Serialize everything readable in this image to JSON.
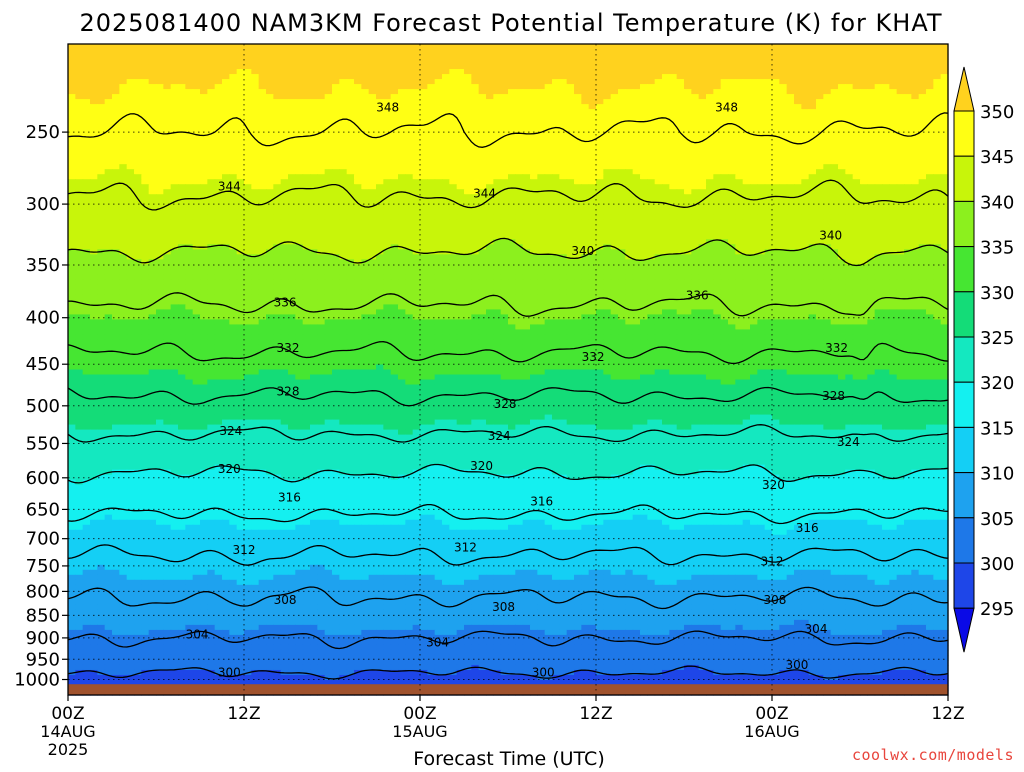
{
  "chart_data": {
    "type": "contour",
    "title": "2025081400 NAM3KM Forecast Potential Temperature (K) for KHAT",
    "xlabel": "Forecast Time (UTC)",
    "ylabel": "",
    "y_scale": "log",
    "y_inverted": true,
    "ylim_hpa": [
      1040,
      200
    ],
    "y_ticks": [
      250,
      300,
      350,
      400,
      450,
      500,
      550,
      600,
      650,
      700,
      750,
      800,
      850,
      900,
      950,
      1000
    ],
    "y_tick_labels": [
      "250",
      "300",
      "350",
      "400",
      "450",
      "500",
      "550",
      "600",
      "650",
      "700",
      "750",
      "800",
      "850",
      "900",
      "950",
      "1000"
    ],
    "x_range_hours": [
      0,
      60
    ],
    "x_ticks": [
      {
        "hour": 0,
        "label": "00Z",
        "sub": "14AUG",
        "sub2": "2025"
      },
      {
        "hour": 12,
        "label": "12Z",
        "sub": "",
        "sub2": ""
      },
      {
        "hour": 24,
        "label": "00Z",
        "sub": "15AUG",
        "sub2": ""
      },
      {
        "hour": 36,
        "label": "12Z",
        "sub": "",
        "sub2": ""
      },
      {
        "hour": 48,
        "label": "00Z",
        "sub": "16AUG",
        "sub2": ""
      },
      {
        "hour": 60,
        "label": "12Z",
        "sub": "",
        "sub2": ""
      }
    ],
    "grid": true,
    "colorbar": {
      "levels": [
        295,
        300,
        305,
        310,
        315,
        320,
        325,
        330,
        335,
        340,
        345,
        350
      ],
      "labels": [
        "295",
        "300",
        "305",
        "310",
        "315",
        "320",
        "325",
        "330",
        "335",
        "340",
        "345",
        "350"
      ],
      "colors": [
        "#0a0ae6",
        "#1e46e8",
        "#1e78e8",
        "#1ea2ef",
        "#14cff5",
        "#14f0f0",
        "#14e8c0",
        "#14dc78",
        "#46e632",
        "#8cf01e",
        "#c8f50a",
        "#ffff14",
        "#ffd21e"
      ],
      "placement": "right"
    },
    "contour_levels": [
      300,
      304,
      308,
      312,
      316,
      320,
      324,
      328,
      332,
      336,
      340,
      344,
      348
    ],
    "theta_profile": [
      {
        "p": 1000,
        "theta": 299
      },
      {
        "p": 950,
        "theta": 302
      },
      {
        "p": 900,
        "theta": 304
      },
      {
        "p": 850,
        "theta": 306.5
      },
      {
        "p": 800,
        "theta": 308.5
      },
      {
        "p": 750,
        "theta": 311
      },
      {
        "p": 700,
        "theta": 313.5
      },
      {
        "p": 650,
        "theta": 316.5
      },
      {
        "p": 600,
        "theta": 319.5
      },
      {
        "p": 550,
        "theta": 323
      },
      {
        "p": 500,
        "theta": 327
      },
      {
        "p": 450,
        "theta": 331
      },
      {
        "p": 400,
        "theta": 335
      },
      {
        "p": 350,
        "theta": 339
      },
      {
        "p": 300,
        "theta": 343.5
      },
      {
        "p": 250,
        "theta": 348
      },
      {
        "p": 200,
        "theta": 352
      }
    ],
    "contour_labels": [
      {
        "value": "348",
        "hour": 21.8,
        "p": 235
      },
      {
        "value": "348",
        "hour": 44.9,
        "p": 235
      },
      {
        "value": "344",
        "hour": 11.0,
        "p": 287
      },
      {
        "value": "344",
        "hour": 28.4,
        "p": 292
      },
      {
        "value": "340",
        "hour": 35.1,
        "p": 338
      },
      {
        "value": "340",
        "hour": 52.0,
        "p": 325
      },
      {
        "value": "336",
        "hour": 14.8,
        "p": 385
      },
      {
        "value": "336",
        "hour": 42.9,
        "p": 378
      },
      {
        "value": "332",
        "hour": 15.0,
        "p": 432
      },
      {
        "value": "332",
        "hour": 35.8,
        "p": 442
      },
      {
        "value": "332",
        "hour": 52.4,
        "p": 432
      },
      {
        "value": "328",
        "hour": 15.0,
        "p": 482
      },
      {
        "value": "328",
        "hour": 29.8,
        "p": 498
      },
      {
        "value": "328",
        "hour": 52.2,
        "p": 488
      },
      {
        "value": "324",
        "hour": 11.1,
        "p": 533
      },
      {
        "value": "324",
        "hour": 29.4,
        "p": 540
      },
      {
        "value": "324",
        "hour": 53.2,
        "p": 548
      },
      {
        "value": "320",
        "hour": 11.0,
        "p": 587
      },
      {
        "value": "320",
        "hour": 28.2,
        "p": 582
      },
      {
        "value": "320",
        "hour": 48.1,
        "p": 611
      },
      {
        "value": "316",
        "hour": 15.1,
        "p": 631
      },
      {
        "value": "316",
        "hour": 32.3,
        "p": 637
      },
      {
        "value": "316",
        "hour": 50.4,
        "p": 681
      },
      {
        "value": "312",
        "hour": 12.0,
        "p": 720
      },
      {
        "value": "312",
        "hour": 27.1,
        "p": 716
      },
      {
        "value": "312",
        "hour": 48.0,
        "p": 742
      },
      {
        "value": "308",
        "hour": 14.8,
        "p": 818
      },
      {
        "value": "308",
        "hour": 29.7,
        "p": 832
      },
      {
        "value": "308",
        "hour": 48.2,
        "p": 818
      },
      {
        "value": "304",
        "hour": 8.8,
        "p": 892
      },
      {
        "value": "304",
        "hour": 25.2,
        "p": 910
      },
      {
        "value": "304",
        "hour": 51.0,
        "p": 880
      },
      {
        "value": "300",
        "hour": 11.0,
        "p": 982
      },
      {
        "value": "300",
        "hour": 32.4,
        "p": 982
      },
      {
        "value": "300",
        "hour": 49.7,
        "p": 964
      }
    ],
    "surface_hpa": 1012,
    "surface_color": "#a0522d",
    "frame_color": "#000000",
    "contour_color": "#000000"
  },
  "credit": "coolwx.com/models"
}
